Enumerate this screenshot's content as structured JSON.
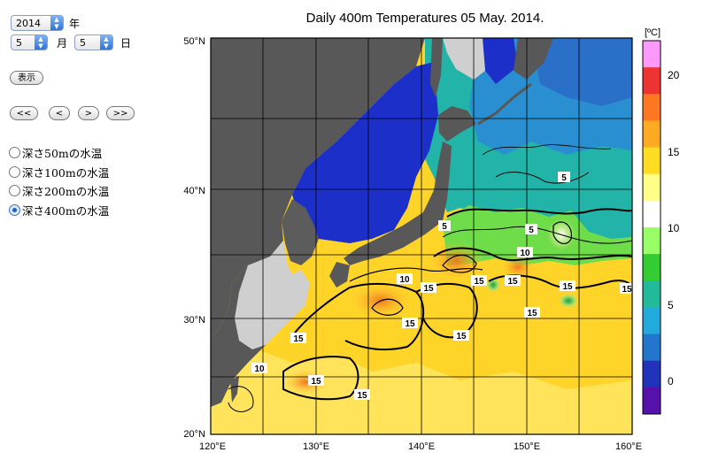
{
  "controls": {
    "year_value": "2014",
    "year_unit": "年",
    "month_value": "5",
    "month_unit": "月",
    "day_value": "5",
    "day_unit": "日",
    "display_label": "表示",
    "nav": [
      "<<",
      "<",
      ">",
      ">>"
    ]
  },
  "layers": [
    {
      "label": "深さ50mの水温",
      "selected": false
    },
    {
      "label": "深さ100mの水温",
      "selected": false
    },
    {
      "label": "深さ200mの水温",
      "selected": false
    },
    {
      "label": "深さ400mの水温",
      "selected": true
    }
  ],
  "map": {
    "title": "Daily 400m Temperatures 05 May. 2014.",
    "lat_labels": [
      "50°N",
      "40°N",
      "30°N",
      "20°N"
    ],
    "lon_labels": [
      "120°E",
      "130°E",
      "140°E",
      "150°E",
      "160°E"
    ],
    "contour_labels": [
      "5",
      "5",
      "5",
      "10",
      "10",
      "10",
      "15",
      "15",
      "15",
      "15",
      "15",
      "15",
      "15",
      "15",
      "15",
      "15",
      "15"
    ]
  },
  "colorbar": {
    "unit": "[ºC]",
    "ticks": [
      "20",
      "15",
      "10",
      "5",
      "0"
    ],
    "range": [
      -2,
      22
    ],
    "colors": [
      "#ff99ff",
      "#ee3333",
      "#ff7722",
      "#ffaa22",
      "#ffdd22",
      "#ffff88",
      "#ffffff",
      "#99ff66",
      "#33cc33",
      "#22bb99",
      "#22aadd",
      "#2277cc",
      "#2233bb",
      "#5511aa"
    ]
  }
}
